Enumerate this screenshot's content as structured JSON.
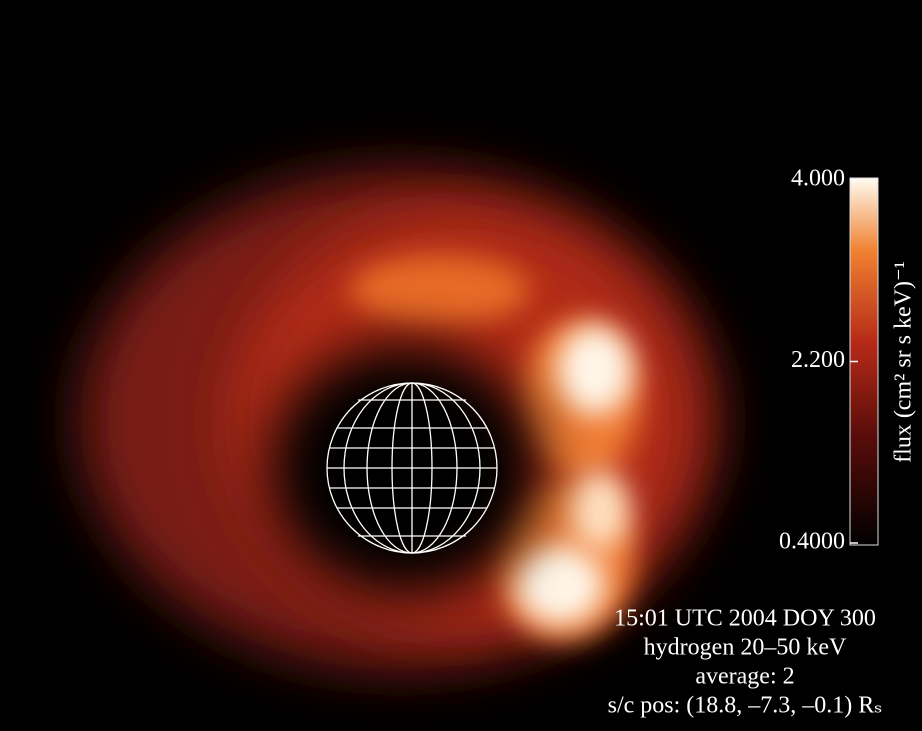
{
  "colorbar": {
    "label": "flux (cm² sr s keV)⁻¹",
    "lim": [
      0.4,
      4
    ],
    "ticks": [
      {
        "value": 4,
        "label": "4.000"
      },
      {
        "value": 2.2,
        "label": "2.200"
      },
      {
        "value": 0.4,
        "label": "0.4000"
      }
    ]
  },
  "annotation": {
    "lines": [
      "15:01 UTC 2004 DOY 300",
      "hydrogen 20–50 keV",
      "average: 2",
      "s/c pos: (18.8, –7.3, –0.1) Rₛ"
    ]
  }
}
